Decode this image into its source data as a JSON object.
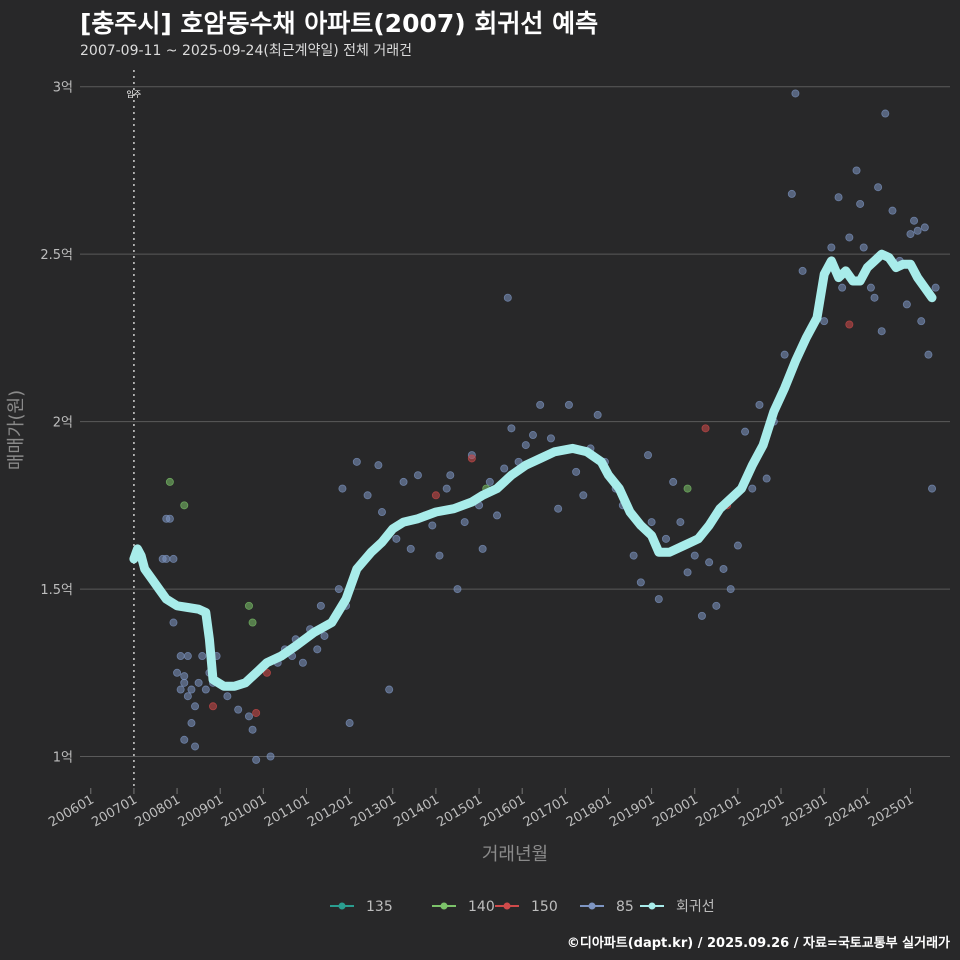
{
  "header": {
    "title": "[충주시] 호암동수채 아파트(2007) 회귀선 예측",
    "subtitle": "2007-09-11 ~ 2025-09-24(최근계약일) 전체 거래건"
  },
  "footer": {
    "credit": "©디아파트(dapt.kr) / 2025.09.26 / 자료=국토교통부 실거래가"
  },
  "colors": {
    "background": "#282829",
    "grid": "#5a5a5a",
    "regression": "#a8ecea",
    "s135": "#2a9d8f",
    "s140": "#7cc36a",
    "s150": "#cf4a4a",
    "s85": "#7e95c2"
  },
  "chart_data": {
    "type": "scatter",
    "xlabel": "거래년월",
    "ylabel": "매매가(원)",
    "x_ticks": [
      "200601",
      "200701",
      "200801",
      "200901",
      "201001",
      "201101",
      "201201",
      "201301",
      "201401",
      "201501",
      "201601",
      "201701",
      "201801",
      "201901",
      "202001",
      "202101",
      "202201",
      "202301",
      "202401",
      "202501"
    ],
    "y_ticks": [
      {
        "value": 1.0,
        "label": "1억"
      },
      {
        "value": 1.5,
        "label": "1.5억"
      },
      {
        "value": 2.0,
        "label": "2억"
      },
      {
        "value": 2.5,
        "label": "2.5억"
      },
      {
        "value": 3.0,
        "label": "3억"
      }
    ],
    "y_unit": "억",
    "ylim": [
      0.9,
      3.05
    ],
    "xlim": [
      "2005-10",
      "2025-12"
    ],
    "vline": {
      "x": "2007-01",
      "label": "입주"
    },
    "legend": [
      {
        "name": "135",
        "color_key": "s135"
      },
      {
        "name": "140",
        "color_key": "s140"
      },
      {
        "name": "150",
        "color_key": "s150"
      },
      {
        "name": "85",
        "color_key": "s85"
      },
      {
        "name": "회귀선",
        "color_key": "regression"
      }
    ],
    "series": [
      {
        "name": "85",
        "points": [
          [
            "2007-09",
            1.59
          ],
          [
            "2007-10",
            1.59
          ],
          [
            "2007-10",
            1.71
          ],
          [
            "2007-11",
            1.71
          ],
          [
            "2007-12",
            1.59
          ],
          [
            "2007-12",
            1.4
          ],
          [
            "2008-01",
            1.25
          ],
          [
            "2008-02",
            1.2
          ],
          [
            "2008-02",
            1.3
          ],
          [
            "2008-03",
            1.24
          ],
          [
            "2008-03",
            1.22
          ],
          [
            "2008-04",
            1.18
          ],
          [
            "2008-04",
            1.3
          ],
          [
            "2008-05",
            1.2
          ],
          [
            "2008-05",
            1.1
          ],
          [
            "2008-06",
            1.15
          ],
          [
            "2008-06",
            1.03
          ],
          [
            "2008-07",
            1.22
          ],
          [
            "2008-03",
            1.05
          ],
          [
            "2008-08",
            1.3
          ],
          [
            "2008-09",
            1.2
          ],
          [
            "2008-10",
            1.25
          ],
          [
            "2008-11",
            1.22
          ],
          [
            "2008-12",
            1.3
          ],
          [
            "2009-03",
            1.18
          ],
          [
            "2009-06",
            1.14
          ],
          [
            "2009-09",
            1.12
          ],
          [
            "2009-11",
            0.99
          ],
          [
            "2010-03",
            1.0
          ],
          [
            "2009-10",
            1.08
          ],
          [
            "2010-05",
            1.28
          ],
          [
            "2010-07",
            1.32
          ],
          [
            "2010-09",
            1.3
          ],
          [
            "2010-10",
            1.35
          ],
          [
            "2010-12",
            1.28
          ],
          [
            "2011-02",
            1.38
          ],
          [
            "2011-04",
            1.32
          ],
          [
            "2011-06",
            1.36
          ],
          [
            "2011-08",
            1.4
          ],
          [
            "2011-10",
            1.5
          ],
          [
            "2011-12",
            1.45
          ],
          [
            "2011-05",
            1.45
          ],
          [
            "2011-11",
            1.8
          ],
          [
            "2012-03",
            1.88
          ],
          [
            "2012-01",
            1.1
          ],
          [
            "2012-06",
            1.78
          ],
          [
            "2012-09",
            1.87
          ],
          [
            "2012-10",
            1.73
          ],
          [
            "2012-12",
            1.2
          ],
          [
            "2013-02",
            1.65
          ],
          [
            "2013-04",
            1.82
          ],
          [
            "2013-06",
            1.62
          ],
          [
            "2013-08",
            1.84
          ],
          [
            "2013-10",
            1.72
          ],
          [
            "2013-12",
            1.69
          ],
          [
            "2014-02",
            1.6
          ],
          [
            "2014-04",
            1.8
          ],
          [
            "2014-05",
            1.84
          ],
          [
            "2014-07",
            1.5
          ],
          [
            "2014-09",
            1.7
          ],
          [
            "2014-11",
            1.9
          ],
          [
            "2015-01",
            1.75
          ],
          [
            "2015-02",
            1.62
          ],
          [
            "2015-04",
            1.82
          ],
          [
            "2015-06",
            1.72
          ],
          [
            "2015-08",
            1.86
          ],
          [
            "2015-09",
            2.37
          ],
          [
            "2015-10",
            1.98
          ],
          [
            "2015-12",
            1.88
          ],
          [
            "2016-02",
            1.93
          ],
          [
            "2016-04",
            1.96
          ],
          [
            "2016-06",
            2.05
          ],
          [
            "2016-09",
            1.95
          ],
          [
            "2016-11",
            1.74
          ],
          [
            "2017-02",
            2.05
          ],
          [
            "2017-04",
            1.85
          ],
          [
            "2017-06",
            1.78
          ],
          [
            "2017-08",
            1.92
          ],
          [
            "2017-10",
            2.02
          ],
          [
            "2017-12",
            1.88
          ],
          [
            "2018-03",
            1.8
          ],
          [
            "2018-05",
            1.75
          ],
          [
            "2018-08",
            1.6
          ],
          [
            "2018-10",
            1.52
          ],
          [
            "2018-12",
            1.9
          ],
          [
            "2019-01",
            1.7
          ],
          [
            "2019-03",
            1.47
          ],
          [
            "2019-05",
            1.65
          ],
          [
            "2019-07",
            1.82
          ],
          [
            "2019-09",
            1.7
          ],
          [
            "2019-11",
            1.55
          ],
          [
            "2020-01",
            1.6
          ],
          [
            "2020-03",
            1.42
          ],
          [
            "2020-05",
            1.58
          ],
          [
            "2020-07",
            1.45
          ],
          [
            "2020-09",
            1.56
          ],
          [
            "2020-11",
            1.5
          ],
          [
            "2021-01",
            1.63
          ],
          [
            "2021-03",
            1.97
          ],
          [
            "2021-05",
            1.8
          ],
          [
            "2021-07",
            2.05
          ],
          [
            "2021-09",
            1.83
          ],
          [
            "2021-11",
            2.0
          ],
          [
            "2022-02",
            2.2
          ],
          [
            "2022-04",
            2.68
          ],
          [
            "2022-05",
            2.98
          ],
          [
            "2022-07",
            2.45
          ],
          [
            "2022-10",
            2.29
          ],
          [
            "2023-01",
            2.3
          ],
          [
            "2023-03",
            2.52
          ],
          [
            "2023-05",
            2.67
          ],
          [
            "2023-06",
            2.4
          ],
          [
            "2023-08",
            2.55
          ],
          [
            "2023-10",
            2.75
          ],
          [
            "2023-12",
            2.52
          ],
          [
            "2024-02",
            2.4
          ],
          [
            "2024-04",
            2.7
          ],
          [
            "2024-06",
            2.92
          ],
          [
            "2024-08",
            2.63
          ],
          [
            "2024-10",
            2.48
          ],
          [
            "2024-12",
            2.35
          ],
          [
            "2025-02",
            2.6
          ],
          [
            "2025-03",
            2.57
          ],
          [
            "2025-04",
            2.3
          ],
          [
            "2025-05",
            2.58
          ],
          [
            "2025-06",
            2.2
          ],
          [
            "2025-07",
            1.8
          ],
          [
            "2025-08",
            2.4
          ],
          [
            "2024-05",
            2.27
          ],
          [
            "2024-03",
            2.37
          ],
          [
            "2023-11",
            2.65
          ],
          [
            "2025-01",
            2.56
          ]
        ]
      },
      {
        "name": "140",
        "points": [
          [
            "2007-11",
            1.82
          ],
          [
            "2008-03",
            1.75
          ],
          [
            "2009-09",
            1.45
          ],
          [
            "2009-10",
            1.4
          ],
          [
            "2015-03",
            1.8
          ],
          [
            "2019-11",
            1.8
          ]
        ]
      },
      {
        "name": "150",
        "points": [
          [
            "2008-11",
            1.15
          ],
          [
            "2009-11",
            1.13
          ],
          [
            "2010-02",
            1.25
          ],
          [
            "2014-01",
            1.78
          ],
          [
            "2014-11",
            1.89
          ],
          [
            "2020-04",
            1.98
          ],
          [
            "2020-10",
            1.75
          ],
          [
            "2023-08",
            2.29
          ]
        ]
      },
      {
        "name": "135",
        "points": []
      }
    ],
    "regression": [
      [
        "2007-01",
        1.59
      ],
      [
        "2007-02",
        1.62
      ],
      [
        "2007-03",
        1.6
      ],
      [
        "2007-04",
        1.56
      ],
      [
        "2007-06",
        1.53
      ],
      [
        "2007-08",
        1.5
      ],
      [
        "2007-10",
        1.47
      ],
      [
        "2008-01",
        1.45
      ],
      [
        "2008-04",
        1.445
      ],
      [
        "2008-07",
        1.44
      ],
      [
        "2008-09",
        1.43
      ],
      [
        "2008-10",
        1.35
      ],
      [
        "2008-11",
        1.23
      ],
      [
        "2009-02",
        1.21
      ],
      [
        "2009-05",
        1.21
      ],
      [
        "2009-08",
        1.22
      ],
      [
        "2009-11",
        1.25
      ],
      [
        "2010-02",
        1.28
      ],
      [
        "2010-06",
        1.3
      ],
      [
        "2010-10",
        1.33
      ],
      [
        "2011-03",
        1.37
      ],
      [
        "2011-08",
        1.4
      ],
      [
        "2011-12",
        1.47
      ],
      [
        "2012-03",
        1.56
      ],
      [
        "2012-07",
        1.61
      ],
      [
        "2012-10",
        1.64
      ],
      [
        "2013-01",
        1.68
      ],
      [
        "2013-04",
        1.7
      ],
      [
        "2013-08",
        1.71
      ],
      [
        "2014-01",
        1.73
      ],
      [
        "2014-06",
        1.74
      ],
      [
        "2014-11",
        1.76
      ],
      [
        "2015-02",
        1.78
      ],
      [
        "2015-06",
        1.8
      ],
      [
        "2015-10",
        1.84
      ],
      [
        "2016-02",
        1.87
      ],
      [
        "2016-06",
        1.89
      ],
      [
        "2016-10",
        1.91
      ],
      [
        "2017-03",
        1.92
      ],
      [
        "2017-07",
        1.91
      ],
      [
        "2017-11",
        1.88
      ],
      [
        "2018-01",
        1.84
      ],
      [
        "2018-04",
        1.8
      ],
      [
        "2018-07",
        1.73
      ],
      [
        "2018-10",
        1.69
      ],
      [
        "2019-01",
        1.66
      ],
      [
        "2019-03",
        1.61
      ],
      [
        "2019-06",
        1.61
      ],
      [
        "2019-10",
        1.63
      ],
      [
        "2020-02",
        1.65
      ],
      [
        "2020-05",
        1.69
      ],
      [
        "2020-08",
        1.74
      ],
      [
        "2020-11",
        1.77
      ],
      [
        "2021-02",
        1.8
      ],
      [
        "2021-05",
        1.87
      ],
      [
        "2021-08",
        1.93
      ],
      [
        "2021-11",
        2.03
      ],
      [
        "2022-02",
        2.1
      ],
      [
        "2022-05",
        2.18
      ],
      [
        "2022-08",
        2.25
      ],
      [
        "2022-11",
        2.31
      ],
      [
        "2023-01",
        2.44
      ],
      [
        "2023-03",
        2.48
      ],
      [
        "2023-05",
        2.43
      ],
      [
        "2023-07",
        2.45
      ],
      [
        "2023-09",
        2.42
      ],
      [
        "2023-11",
        2.42
      ],
      [
        "2024-01",
        2.46
      ],
      [
        "2024-03",
        2.48
      ],
      [
        "2024-05",
        2.5
      ],
      [
        "2024-07",
        2.49
      ],
      [
        "2024-09",
        2.46
      ],
      [
        "2024-11",
        2.47
      ],
      [
        "2025-01",
        2.47
      ],
      [
        "2025-03",
        2.43
      ],
      [
        "2025-05",
        2.4
      ],
      [
        "2025-07",
        2.37
      ]
    ]
  }
}
